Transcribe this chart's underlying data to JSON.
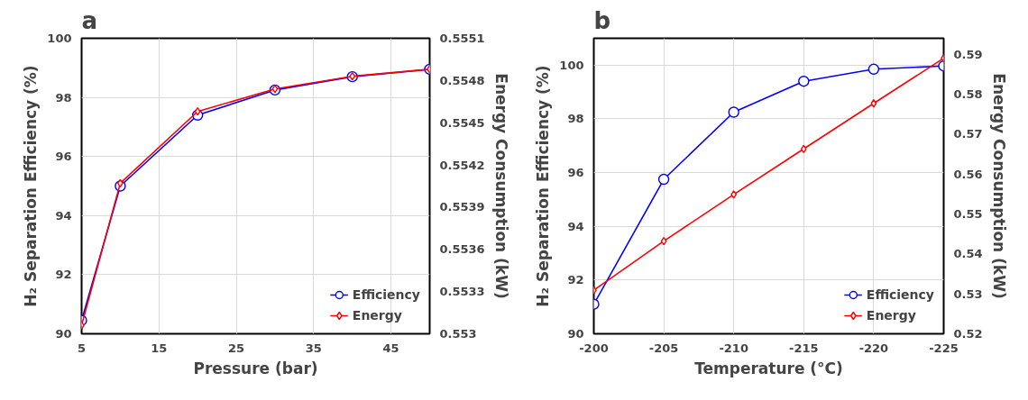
{
  "chart_data": [
    {
      "type": "line",
      "title": "a",
      "xlabel": "Pressure (bar)",
      "ylabel": "H₂ Separation Efficiency (%)",
      "y2label": "Energy Consumption (kW)",
      "x": [
        5,
        10,
        20,
        30,
        40,
        50
      ],
      "xlim": [
        5,
        50
      ],
      "xticks": [
        5,
        15,
        25,
        35,
        45
      ],
      "ylim": [
        90,
        100
      ],
      "yticks": [
        90,
        92,
        94,
        96,
        98,
        100
      ],
      "y2lim": [
        0.553,
        0.5551
      ],
      "y2ticks": [
        0.553,
        0.5533,
        0.5536,
        0.5539,
        0.5542,
        0.5545,
        0.5548,
        0.5551
      ],
      "grid": true,
      "legend": "bottom right",
      "series": [
        {
          "name": "Efficiency",
          "color": "#0000ff",
          "marker": "circle",
          "values": [
            90.45,
            95.0,
            97.4,
            98.25,
            98.7,
            98.95
          ]
        },
        {
          "name": "Energy",
          "color": "#ff0000",
          "marker": "diamond",
          "axis": "y2",
          "values": [
            0.55306,
            0.55407,
            0.55458,
            0.55474,
            0.55483,
            0.55488
          ]
        }
      ]
    },
    {
      "type": "line",
      "title": "b",
      "xlabel": "Temperature (°C)",
      "ylabel": "H₂ Separation Efficiency (%)",
      "y2label": "Energy Consumption (kW)",
      "x": [
        -200,
        -205,
        -210,
        -215,
        -220,
        -225
      ],
      "xlim": [
        -200,
        -225
      ],
      "xticks": [
        -200,
        -205,
        -210,
        -215,
        -220,
        -225
      ],
      "ylim": [
        90,
        101
      ],
      "yticks": [
        90,
        92,
        94,
        96,
        98,
        100
      ],
      "y2lim": [
        0.52,
        0.594
      ],
      "y2ticks": [
        0.52,
        0.53,
        0.54,
        0.55,
        0.56,
        0.57,
        0.58,
        0.59
      ],
      "grid": true,
      "legend": "bottom right",
      "series": [
        {
          "name": "Efficiency",
          "color": "#0000ff",
          "marker": "circle",
          "values": [
            91.1,
            95.75,
            98.25,
            99.4,
            99.85,
            99.97
          ]
        },
        {
          "name": "Energy",
          "color": "#ff0000",
          "marker": "diamond",
          "axis": "y2",
          "values": [
            0.5309,
            0.5432,
            0.5549,
            0.5663,
            0.5777,
            0.589
          ]
        }
      ]
    }
  ]
}
